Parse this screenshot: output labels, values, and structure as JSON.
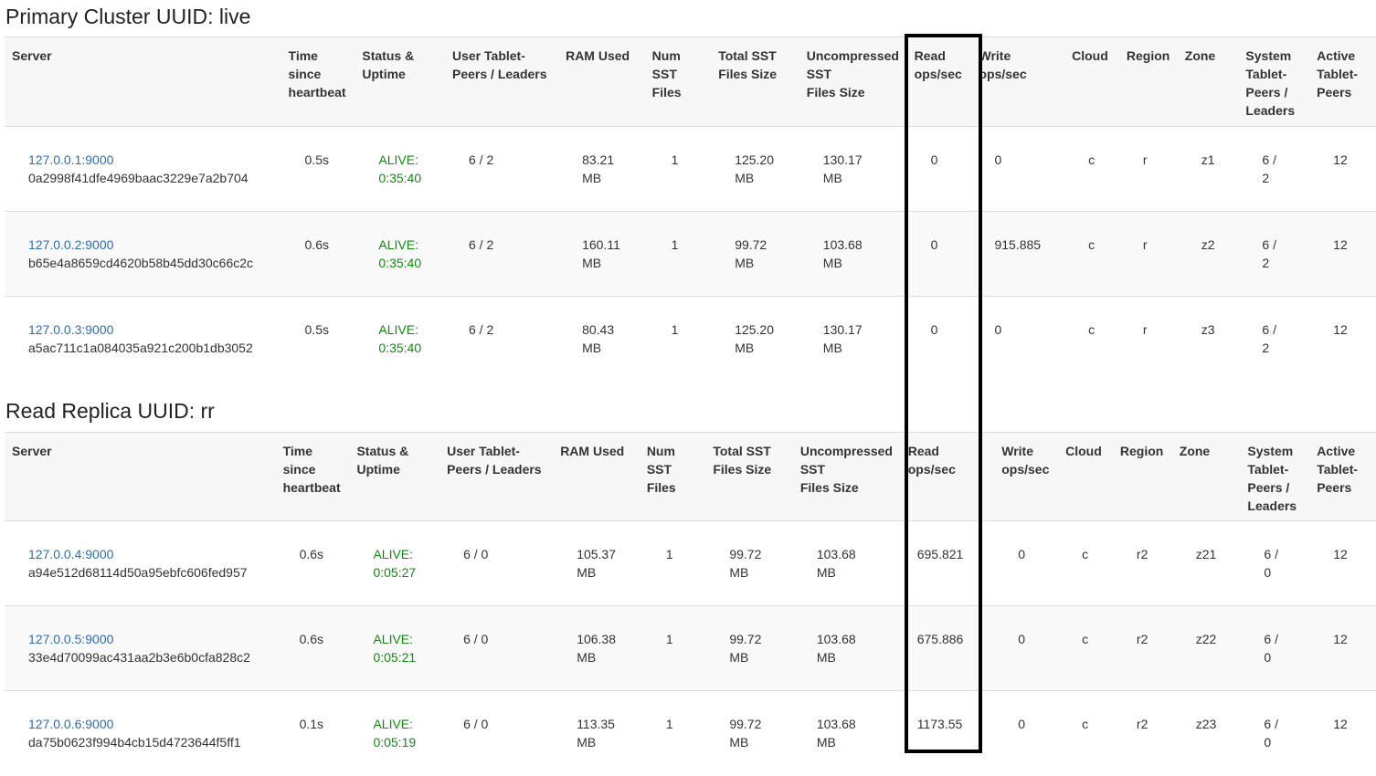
{
  "primary": {
    "title": "Primary Cluster UUID: live",
    "headers": [
      [
        "Server"
      ],
      [
        "Time",
        "since",
        "heartbeat"
      ],
      [
        "Status &",
        "Uptime"
      ],
      [
        "User Tablet-",
        "Peers / Leaders"
      ],
      [
        "RAM Used"
      ],
      [
        "Num",
        "SST",
        "Files"
      ],
      [
        "Total SST",
        "Files Size"
      ],
      [
        "Uncompressed",
        "SST",
        "Files Size"
      ],
      [
        "Read",
        "ops/sec"
      ],
      [
        "Write",
        "ops/sec"
      ],
      [
        "Cloud"
      ],
      [
        "Region"
      ],
      [
        "Zone"
      ],
      [
        "System",
        "Tablet-",
        "Peers /",
        "Leaders"
      ],
      [
        "Active",
        "Tablet-",
        "Peers"
      ]
    ],
    "rows": [
      {
        "addr": "127.0.0.1:9000",
        "uuid": "0a2998f41dfe4969baac3229e7a2b704",
        "hb": "0.5s",
        "status": "ALIVE:",
        "uptime": "0:35:40",
        "user": "6 / 2",
        "ram": [
          "83.21",
          "MB"
        ],
        "num": "1",
        "total": [
          "125.20",
          "MB"
        ],
        "uncomp": [
          "130.17",
          "MB"
        ],
        "read": "0",
        "write": "0",
        "cloud": "c",
        "region": "r",
        "zone": "z1",
        "sys": [
          "6 /",
          "2"
        ],
        "active": "12"
      },
      {
        "addr": "127.0.0.2:9000",
        "uuid": "b65e4a8659cd4620b58b45dd30c66c2c",
        "hb": "0.6s",
        "status": "ALIVE:",
        "uptime": "0:35:40",
        "user": "6 / 2",
        "ram": [
          "160.11",
          "MB"
        ],
        "num": "1",
        "total": [
          "99.72",
          "MB"
        ],
        "uncomp": [
          "103.68",
          "MB"
        ],
        "read": "0",
        "write": "915.885",
        "cloud": "c",
        "region": "r",
        "zone": "z2",
        "sys": [
          "6 /",
          "2"
        ],
        "active": "12"
      },
      {
        "addr": "127.0.0.3:9000",
        "uuid": "a5ac711c1a084035a921c200b1db3052",
        "hb": "0.5s",
        "status": "ALIVE:",
        "uptime": "0:35:40",
        "user": "6 / 2",
        "ram": [
          "80.43",
          "MB"
        ],
        "num": "1",
        "total": [
          "125.20",
          "MB"
        ],
        "uncomp": [
          "130.17",
          "MB"
        ],
        "read": "0",
        "write": "0",
        "cloud": "c",
        "region": "r",
        "zone": "z3",
        "sys": [
          "6 /",
          "2"
        ],
        "active": "12"
      }
    ]
  },
  "replica": {
    "title": "Read Replica UUID: rr",
    "headers": [
      [
        "Server"
      ],
      [
        "Time",
        "since",
        "heartbeat"
      ],
      [
        "Status &",
        "Uptime"
      ],
      [
        "User Tablet-",
        "Peers / Leaders"
      ],
      [
        "RAM Used"
      ],
      [
        "Num",
        "SST",
        "Files"
      ],
      [
        "Total SST",
        "Files Size"
      ],
      [
        "Uncompressed",
        "SST",
        "Files Size"
      ],
      [
        "Read",
        "ops/sec"
      ],
      [
        "Write",
        "ops/sec"
      ],
      [
        "Cloud"
      ],
      [
        "Region"
      ],
      [
        "Zone"
      ],
      [
        "System",
        "Tablet-",
        "Peers /",
        "Leaders"
      ],
      [
        "Active",
        "Tablet-",
        "Peers"
      ]
    ],
    "rows": [
      {
        "addr": "127.0.0.4:9000",
        "uuid": "a94e512d68114d50a95ebfc606fed957",
        "hb": "0.6s",
        "status": "ALIVE:",
        "uptime": "0:05:27",
        "user": "6 / 0",
        "ram": [
          "105.37",
          "MB"
        ],
        "num": "1",
        "total": [
          "99.72",
          "MB"
        ],
        "uncomp": [
          "103.68",
          "MB"
        ],
        "read": "695.821",
        "write": "0",
        "cloud": "c",
        "region": "r2",
        "zone": "z21",
        "sys": [
          "6 /",
          "0"
        ],
        "active": "12"
      },
      {
        "addr": "127.0.0.5:9000",
        "uuid": "33e4d70099ac431aa2b3e6b0cfa828c2",
        "hb": "0.6s",
        "status": "ALIVE:",
        "uptime": "0:05:21",
        "user": "6 / 0",
        "ram": [
          "106.38",
          "MB"
        ],
        "num": "1",
        "total": [
          "99.72",
          "MB"
        ],
        "uncomp": [
          "103.68",
          "MB"
        ],
        "read": "675.886",
        "write": "0",
        "cloud": "c",
        "region": "r2",
        "zone": "z22",
        "sys": [
          "6 /",
          "0"
        ],
        "active": "12"
      },
      {
        "addr": "127.0.0.6:9000",
        "uuid": "da75b0623f994b4cb15d4723644f5ff1",
        "hb": "0.1s",
        "status": "ALIVE:",
        "uptime": "0:05:19",
        "user": "6 / 0",
        "ram": [
          "113.35",
          "MB"
        ],
        "num": "1",
        "total": [
          "99.72",
          "MB"
        ],
        "uncomp": [
          "103.68",
          "MB"
        ],
        "read": "1173.55",
        "write": "0",
        "cloud": "c",
        "region": "r2",
        "zone": "z23",
        "sys": [
          "6 /",
          "0"
        ],
        "active": "12"
      }
    ]
  },
  "colors": {
    "link": "#2a6db5",
    "alive": "#118811",
    "highlight": "#000000"
  }
}
